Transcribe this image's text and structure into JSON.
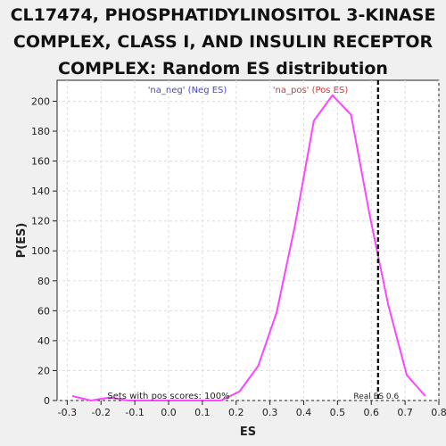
{
  "chart_data": {
    "type": "line",
    "title_lines": [
      "CL17474, PHOSPHATIDYLINOSITOL 3-KINASE",
      "COMPLEX, CLASS I, AND INSULIN RECEPTOR",
      "COMPLEX: Random ES distribution"
    ],
    "xlabel": "ES",
    "ylabel": "P(ES)",
    "xlim": [
      -0.33,
      0.8
    ],
    "ylim": [
      0,
      214
    ],
    "xticks": [
      -0.3,
      -0.2,
      -0.1,
      0.0,
      0.1,
      0.2,
      0.3,
      0.4,
      0.5,
      0.6,
      0.7,
      0.8
    ],
    "xtick_labels": [
      "-0.3",
      "-0.2",
      "-0.1",
      "0.0",
      "0.1",
      "0.2",
      "0.3",
      "0.4",
      "0.5",
      "0.6",
      "0.7",
      "0.8"
    ],
    "yticks": [
      0,
      20,
      40,
      60,
      80,
      100,
      120,
      140,
      160,
      180,
      200
    ],
    "ytick_labels": [
      "0",
      "20",
      "40",
      "60",
      "80",
      "100",
      "120",
      "140",
      "160",
      "180",
      "200"
    ],
    "grid": true,
    "series": [
      {
        "name": "'na_pos' (Pos ES)",
        "color": "#ff44ff",
        "x": [
          -0.285,
          -0.23,
          -0.175,
          -0.12,
          -0.065,
          -0.01,
          0.045,
          0.1,
          0.155,
          0.21,
          0.265,
          0.32,
          0.375,
          0.43,
          0.485,
          0.54,
          0.595,
          0.65,
          0.705,
          0.76
        ],
        "y": [
          3,
          0,
          2,
          0,
          0,
          0,
          0,
          0,
          0,
          6,
          23,
          59,
          118,
          187,
          204,
          191,
          124,
          64,
          17,
          3
        ]
      }
    ],
    "legend": [
      {
        "label": "'na_neg' (Neg ES)",
        "color": "#4444dd",
        "position": "top-left"
      },
      {
        "label": "'na_pos' (Pos ES)",
        "color": "#dd3333",
        "position": "top-right"
      }
    ],
    "real_es": {
      "value": 0.62,
      "label": "Real ES 0.6",
      "style": "dashed",
      "color": "#000000"
    },
    "annotation": "Sets with pos scores: 100%"
  }
}
